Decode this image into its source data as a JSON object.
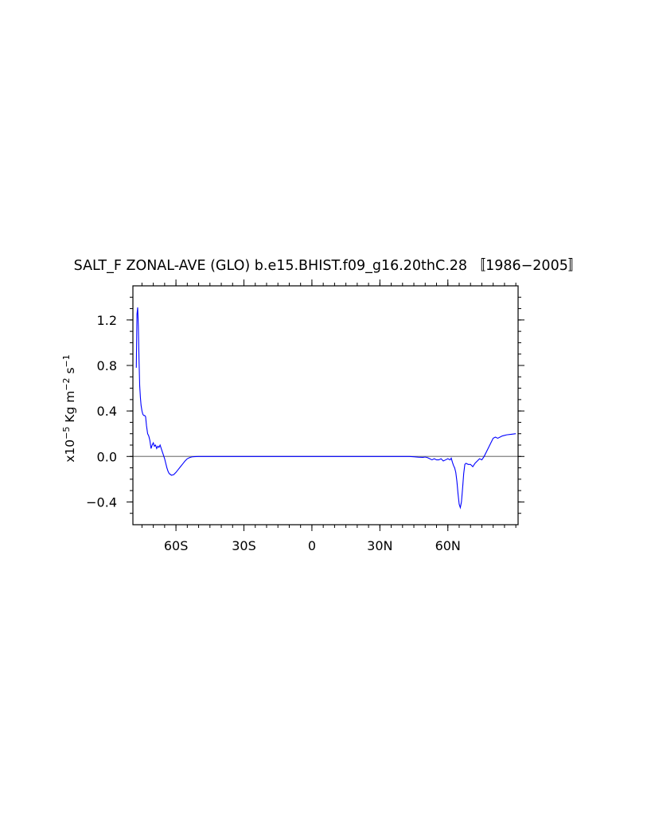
{
  "chart_data": {
    "type": "line",
    "title": "SALT_F ZONAL-AVE (GLO) b.e15.BHIST.f09_g16.20thC.28 〚1986−2005〛",
    "ylabel_prefix": "x10",
    "ylabel_exp": "−5",
    "ylabel_mid": " Kg m",
    "ylabel_exp2": "−2",
    "ylabel_mid2": " s",
    "ylabel_exp3": "−1",
    "xlabel": "",
    "xlim": [
      -79,
      91
    ],
    "ylim": [
      -0.6,
      1.5
    ],
    "x_ticks": [
      {
        "value": -60,
        "label": "60S"
      },
      {
        "value": -30,
        "label": "30S"
      },
      {
        "value": 0,
        "label": "0"
      },
      {
        "value": 30,
        "label": "30N"
      },
      {
        "value": 60,
        "label": "60N"
      }
    ],
    "y_ticks": [
      {
        "value": -0.4,
        "label": "−0.4"
      },
      {
        "value": 0.0,
        "label": "0.0"
      },
      {
        "value": 0.4,
        "label": "0.4"
      },
      {
        "value": 0.8,
        "label": "0.8"
      },
      {
        "value": 1.2,
        "label": "1.2"
      }
    ],
    "reference_line": 0.0,
    "series": [
      {
        "color": "#0000ff",
        "x": [
          -77.5,
          -77.2,
          -76.9,
          -76.6,
          -76.3,
          -76.0,
          -75.7,
          -75.4,
          -75.0,
          -74.6,
          -74.2,
          -73.8,
          -73.4,
          -73.0,
          -72.5,
          -72.0,
          -71.5,
          -71.0,
          -70.5,
          -70.0,
          -69.5,
          -69.0,
          -68.5,
          -68.0,
          -67.5,
          -67.0,
          -66.5,
          -66.0,
          -65.5,
          -65.0,
          -64.5,
          -64.0,
          -63.5,
          -63.0,
          -62.0,
          -61.0,
          -60.0,
          -59.0,
          -58.0,
          -57.0,
          -56.0,
          -55.0,
          -54.0,
          -53.0,
          -52.0,
          -51.0,
          -50.0,
          -45.0,
          -40.0,
          -30.0,
          -20.0,
          -10.0,
          0.0,
          10.0,
          20.0,
          30.0,
          40.0,
          43.0,
          45.0,
          47.0,
          49.0,
          50.0,
          51.0,
          52.0,
          53.0,
          54.0,
          55.0,
          56.0,
          57.0,
          58.0,
          59.0,
          60.0,
          61.0,
          61.5,
          62.0,
          62.5,
          63.0,
          63.5,
          64.0,
          64.5,
          65.0,
          65.5,
          66.0,
          66.5,
          67.0,
          67.5,
          68.0,
          69.0,
          70.0,
          71.0,
          72.0,
          73.0,
          74.0,
          75.0,
          76.0,
          77.0,
          78.0,
          79.0,
          80.0,
          81.0,
          82.0,
          83.0,
          84.0,
          86.0,
          88.0,
          90.0
        ],
        "y": [
          0.78,
          1.25,
          1.31,
          1.15,
          0.85,
          0.62,
          0.52,
          0.45,
          0.4,
          0.37,
          0.36,
          0.36,
          0.35,
          0.27,
          0.2,
          0.18,
          0.14,
          0.07,
          0.1,
          0.12,
          0.09,
          0.1,
          0.07,
          0.09,
          0.08,
          0.1,
          0.07,
          0.04,
          0.01,
          -0.02,
          -0.06,
          -0.1,
          -0.13,
          -0.15,
          -0.165,
          -0.16,
          -0.14,
          -0.115,
          -0.09,
          -0.065,
          -0.04,
          -0.02,
          -0.01,
          -0.004,
          -0.002,
          -0.001,
          0.0,
          0.0,
          0.0,
          0.0,
          0.0,
          0.0,
          0.0,
          0.0,
          0.0,
          0.0,
          0.0,
          0.0,
          -0.003,
          -0.006,
          -0.008,
          -0.005,
          -0.01,
          -0.02,
          -0.03,
          -0.02,
          -0.03,
          -0.03,
          -0.02,
          -0.04,
          -0.03,
          -0.02,
          -0.03,
          -0.015,
          -0.05,
          -0.08,
          -0.1,
          -0.14,
          -0.22,
          -0.33,
          -0.42,
          -0.45,
          -0.4,
          -0.28,
          -0.15,
          -0.07,
          -0.06,
          -0.07,
          -0.07,
          -0.09,
          -0.06,
          -0.04,
          -0.02,
          -0.03,
          0.0,
          0.04,
          0.08,
          0.12,
          0.16,
          0.17,
          0.16,
          0.17,
          0.18,
          0.19,
          0.195,
          0.2
        ]
      }
    ],
    "axis_color": "#000000",
    "reference_color": "#808080"
  }
}
